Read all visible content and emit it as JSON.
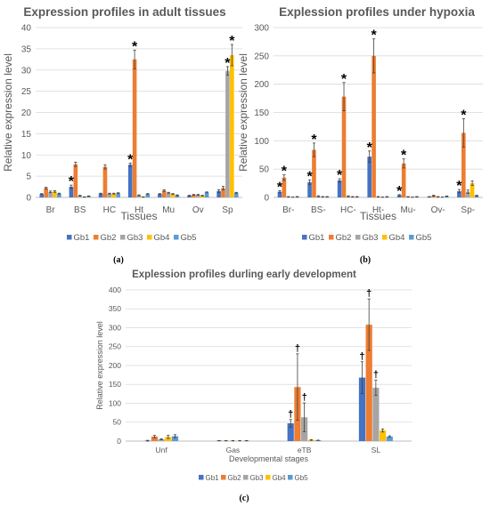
{
  "colors": {
    "Gb1": "#4472c4",
    "Gb2": "#ed7d31",
    "Gb3": "#a5a5a5",
    "Gb4": "#ffc000",
    "Gb5": "#5b9bd5"
  },
  "chart_data": [
    {
      "id": "a",
      "type": "bar",
      "title": "Expression profiles in adult tissues",
      "xlabel": "Tissues",
      "ylabel": "Relative expression level",
      "ylim": [
        0,
        40
      ],
      "yticks": [
        0,
        5,
        10,
        15,
        20,
        25,
        30,
        35,
        40
      ],
      "categories": [
        "Br",
        "BS",
        "HC",
        "Ht",
        "Mu",
        "Ov",
        "Sp"
      ],
      "series": [
        {
          "name": "Gb1",
          "values": [
            0.8,
            2.5,
            0.9,
            7.7,
            0.8,
            0.4,
            1.5
          ],
          "errors": [
            0.1,
            0.4,
            0.1,
            0.4,
            0.1,
            0.1,
            0.3
          ]
        },
        {
          "name": "Gb2",
          "values": [
            2.2,
            7.8,
            7.2,
            32.5,
            1.6,
            0.6,
            2.2
          ],
          "errors": [
            0.2,
            0.5,
            0.5,
            2.2,
            0.2,
            0.1,
            0.4
          ]
        },
        {
          "name": "Gb3",
          "values": [
            1.3,
            0.4,
            0.9,
            0.5,
            1.1,
            0.6,
            29.8
          ],
          "errors": [
            0.2,
            0.1,
            0.1,
            0.1,
            0.1,
            0.1,
            1.0
          ]
        },
        {
          "name": "Gb4",
          "values": [
            1.4,
            0.1,
            0.9,
            0.1,
            0.8,
            0.4,
            33.5
          ],
          "errors": [
            0.2,
            0.05,
            0.1,
            0.05,
            0.1,
            0.1,
            2.5
          ]
        },
        {
          "name": "Gb5",
          "values": [
            0.9,
            0.3,
            1.0,
            0.8,
            0.5,
            1.2,
            1.1
          ],
          "errors": [
            0.1,
            0.05,
            0.1,
            0.1,
            0.1,
            0.1,
            0.1
          ]
        }
      ],
      "markers": [
        {
          "category": 1,
          "series": 0,
          "symbol": "*"
        },
        {
          "category": 3,
          "series": 0,
          "symbol": "*"
        },
        {
          "category": 3,
          "series": 1,
          "symbol": "*"
        },
        {
          "category": 6,
          "series": 2,
          "symbol": "*"
        },
        {
          "category": 6,
          "series": 3,
          "symbol": "*"
        }
      ],
      "legend": [
        "Gb1",
        "Gb2",
        "Gb3",
        "Gb4",
        "Gb5"
      ],
      "legend_placement": "bottom",
      "caption": "(a)"
    },
    {
      "id": "b",
      "type": "bar",
      "title": "Explession profiles under hypoxia",
      "xlabel": "Tissues",
      "ylabel": "Relative expression level",
      "ylim": [
        0,
        300
      ],
      "yticks": [
        0,
        50,
        100,
        150,
        200,
        250,
        300
      ],
      "categories": [
        "Br-",
        "BS-",
        "HC-",
        "Ht-",
        "Mu-",
        "Ov-",
        "Sp-"
      ],
      "series": [
        {
          "name": "Gb1",
          "values": [
            10,
            27,
            30,
            72,
            4,
            1,
            11
          ],
          "errors": [
            2,
            4,
            3,
            10,
            1,
            0.5,
            3
          ]
        },
        {
          "name": "Gb2",
          "values": [
            35,
            84,
            178,
            250,
            60,
            3,
            114
          ],
          "errors": [
            5,
            12,
            25,
            30,
            8,
            1,
            25
          ]
        },
        {
          "name": "Gb3",
          "values": [
            1,
            2,
            2,
            1,
            1,
            1,
            10
          ],
          "errors": [
            0.5,
            1,
            1,
            0.5,
            0.5,
            0.5,
            3
          ]
        },
        {
          "name": "Gb4",
          "values": [
            0.5,
            1,
            1,
            0.5,
            0.5,
            0.5,
            25
          ],
          "errors": [
            0.2,
            0.5,
            0.5,
            0.2,
            0.2,
            0.2,
            4
          ]
        },
        {
          "name": "Gb5",
          "values": [
            1,
            1,
            1,
            1,
            1,
            2,
            3
          ],
          "errors": [
            0.5,
            0.5,
            0.5,
            0.5,
            0.5,
            0.5,
            1
          ]
        }
      ],
      "markers": [
        {
          "category": 0,
          "series": 0,
          "symbol": "*"
        },
        {
          "category": 0,
          "series": 1,
          "symbol": "*"
        },
        {
          "category": 1,
          "series": 0,
          "symbol": "*"
        },
        {
          "category": 1,
          "series": 1,
          "symbol": "*"
        },
        {
          "category": 2,
          "series": 0,
          "symbol": "*"
        },
        {
          "category": 2,
          "series": 1,
          "symbol": "*"
        },
        {
          "category": 3,
          "series": 0,
          "symbol": "*"
        },
        {
          "category": 3,
          "series": 1,
          "symbol": "*"
        },
        {
          "category": 4,
          "series": 0,
          "symbol": "*"
        },
        {
          "category": 4,
          "series": 1,
          "symbol": "*"
        },
        {
          "category": 6,
          "series": 0,
          "symbol": "*"
        },
        {
          "category": 6,
          "series": 1,
          "symbol": "*"
        }
      ],
      "legend": [
        "Gb1",
        "Gb2",
        "Gb3",
        "Gb4",
        "Gb5"
      ],
      "legend_placement": "bottom",
      "caption": "(b)"
    },
    {
      "id": "c",
      "type": "bar",
      "title": "Explession profiles  durling early development",
      "xlabel": "Developmental stages",
      "ylabel": "Relative expression level",
      "ylim": [
        0,
        400
      ],
      "yticks": [
        0,
        50,
        100,
        150,
        200,
        250,
        300,
        350,
        400
      ],
      "categories": [
        "Unf",
        "Gas",
        "eTB",
        "SL"
      ],
      "series": [
        {
          "name": "Gb1",
          "values": [
            1,
            1,
            47,
            168
          ],
          "errors": [
            1,
            0.5,
            10,
            42
          ]
        },
        {
          "name": "Gb2",
          "values": [
            12,
            1,
            143,
            308
          ],
          "errors": [
            3,
            0.5,
            88,
            68
          ]
        },
        {
          "name": "Gb3",
          "values": [
            5,
            1,
            63,
            141
          ],
          "errors": [
            1,
            0.5,
            38,
            20
          ]
        },
        {
          "name": "Gb4",
          "values": [
            11,
            1,
            3,
            28
          ],
          "errors": [
            4,
            0.5,
            1,
            4
          ]
        },
        {
          "name": "Gb5",
          "values": [
            13,
            1,
            2,
            12
          ],
          "errors": [
            4,
            0.5,
            0.5,
            2
          ]
        }
      ],
      "markers": [
        {
          "category": 2,
          "series": 0,
          "symbol": "†"
        },
        {
          "category": 2,
          "series": 1,
          "symbol": "†"
        },
        {
          "category": 2,
          "series": 2,
          "symbol": "†"
        },
        {
          "category": 3,
          "series": 0,
          "symbol": "†"
        },
        {
          "category": 3,
          "series": 1,
          "symbol": "†"
        },
        {
          "category": 3,
          "series": 2,
          "symbol": "†"
        }
      ],
      "legend": [
        "Gb1",
        "Gb2",
        "Gb3",
        "Gb4",
        "Gb5"
      ],
      "legend_placement": "bottom",
      "caption": "(c)"
    }
  ]
}
